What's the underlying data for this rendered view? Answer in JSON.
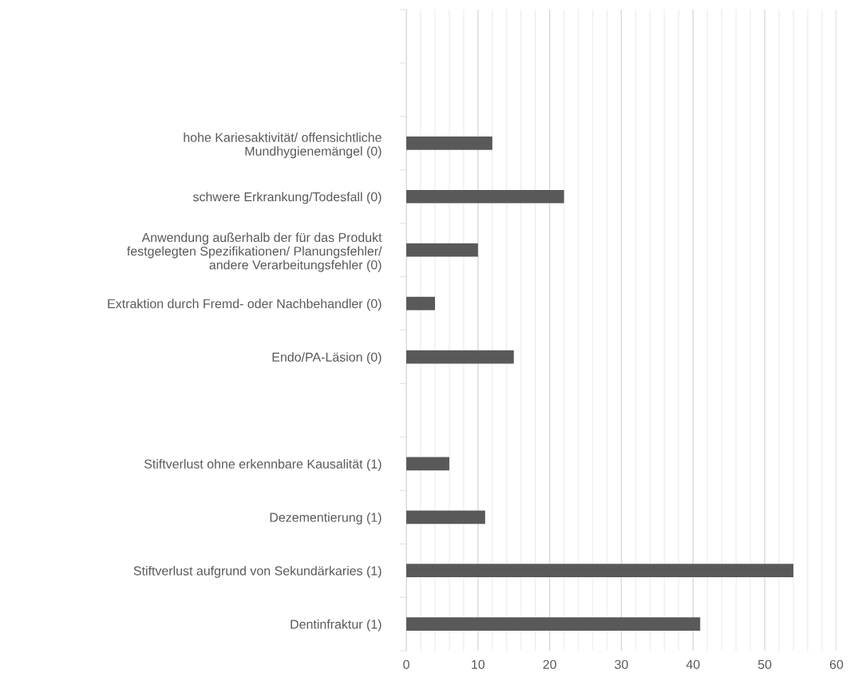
{
  "chart_data": {
    "type": "bar",
    "orientation": "horizontal",
    "categories": [
      null,
      null,
      "hohe Kariesaktivität/ offensichtliche\nMundhygienemängel (0)",
      "schwere Erkrankung/Todesfall (0)",
      "Anwendung außerhalb der für das Produkt\nfestgelegten Spezifikationen/ Planungsfehler/\nandere Verarbeitungsfehler (0)",
      "Extraktion durch Fremd- oder Nachbehandler (0)",
      "Endo/PA-Läsion (0)",
      null,
      "Stiftverlust ohne erkennbare Kausalität (1)",
      "Dezementierung (1)",
      "Stiftverlust aufgrund von Sekundärkaries (1)",
      "Dentinfraktur (1)"
    ],
    "values": [
      null,
      null,
      12,
      22,
      10,
      4,
      15,
      null,
      6,
      11,
      54,
      41
    ],
    "color": "#595959",
    "xlim": [
      0,
      60
    ],
    "xticks": [
      0,
      {
        "value": 2,
        "label": null
      },
      {
        "value": 4,
        "label": null
      },
      {
        "value": 6,
        "label": null
      },
      {
        "value": 8,
        "label": null
      },
      10,
      {
        "value": 12,
        "label": null
      },
      {
        "value": 14,
        "label": null
      },
      {
        "value": 16,
        "label": null
      },
      {
        "value": 18,
        "label": null
      },
      20,
      {
        "value": 22,
        "label": null
      },
      {
        "value": 24,
        "label": null
      },
      {
        "value": 26,
        "label": null
      },
      {
        "value": 28,
        "label": null
      },
      30,
      {
        "value": 32,
        "label": null
      },
      {
        "value": 34,
        "label": null
      },
      {
        "value": 36,
        "label": null
      },
      {
        "value": 38,
        "label": null
      },
      40,
      {
        "value": 42,
        "label": null
      },
      {
        "value": 44,
        "label": null
      },
      {
        "value": 46,
        "label": null
      },
      {
        "value": 48,
        "label": null
      },
      50,
      {
        "value": 52,
        "label": null
      },
      {
        "value": 54,
        "label": null
      },
      {
        "value": 56,
        "label": null
      },
      {
        "value": 58,
        "label": null
      },
      60
    ],
    "grid": "x",
    "legend": false
  }
}
